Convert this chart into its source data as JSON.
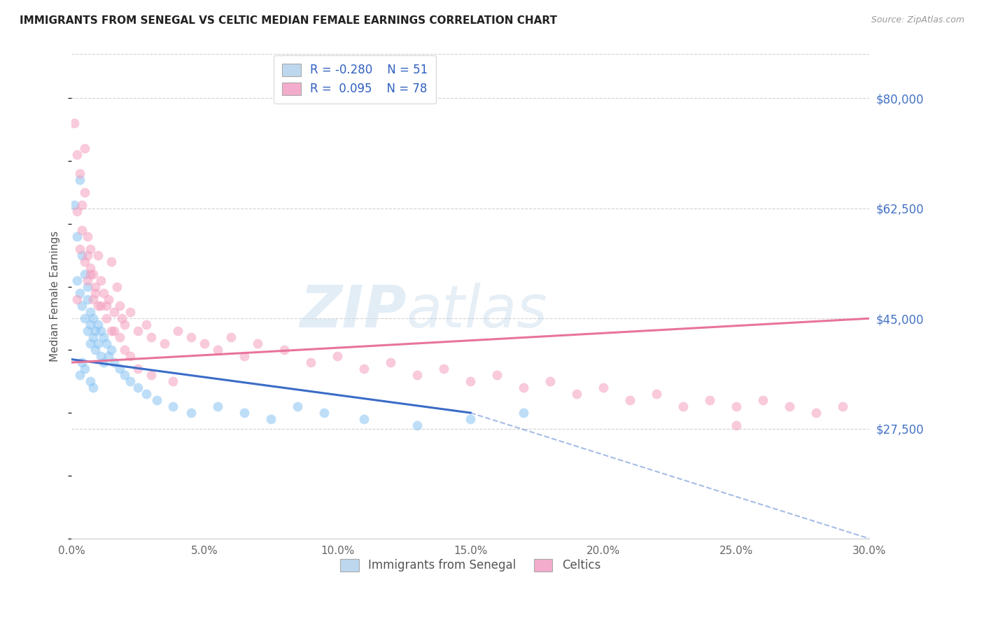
{
  "title": "IMMIGRANTS FROM SENEGAL VS CELTIC MEDIAN FEMALE EARNINGS CORRELATION CHART",
  "source": "Source: ZipAtlas.com",
  "ylabel": "Median Female Earnings",
  "xlim": [
    0.0,
    0.3
  ],
  "ylim": [
    10000,
    87000
  ],
  "xtick_labels": [
    "0.0%",
    "5.0%",
    "10.0%",
    "15.0%",
    "20.0%",
    "25.0%",
    "30.0%"
  ],
  "xtick_vals": [
    0.0,
    0.05,
    0.1,
    0.15,
    0.2,
    0.25,
    0.3
  ],
  "ytick_vals_right": [
    27500,
    45000,
    62500,
    80000
  ],
  "ytick_labels_right": [
    "$27,500",
    "$45,000",
    "$62,500",
    "$80,000"
  ],
  "r_senegal": -0.28,
  "n_senegal": 51,
  "r_celtics": 0.095,
  "n_celtics": 78,
  "color_senegal": "#89C4F4",
  "color_celtics": "#F4A0BE",
  "color_senegal_line": "#3B6CC7",
  "color_celtics_line": "#E8749A",
  "bg_color": "#FFFFFF",
  "grid_color": "#CCCCCC",
  "title_color": "#222222",
  "right_label_color": "#4472C4",
  "watermark_zip": "ZIP",
  "watermark_atlas": "atlas",
  "legend_fill_senegal": "#BDD7EE",
  "legend_fill_celtics": "#F4ACCC",
  "scatter_alpha": 0.55,
  "scatter_size": 100,
  "senegal_x": [
    0.001,
    0.002,
    0.002,
    0.003,
    0.003,
    0.004,
    0.004,
    0.005,
    0.005,
    0.006,
    0.006,
    0.006,
    0.007,
    0.007,
    0.007,
    0.008,
    0.008,
    0.009,
    0.009,
    0.01,
    0.01,
    0.011,
    0.011,
    0.012,
    0.012,
    0.013,
    0.014,
    0.015,
    0.016,
    0.018,
    0.02,
    0.022,
    0.025,
    0.028,
    0.032,
    0.038,
    0.045,
    0.055,
    0.065,
    0.075,
    0.085,
    0.095,
    0.11,
    0.13,
    0.15,
    0.17,
    0.004,
    0.005,
    0.003,
    0.007,
    0.008
  ],
  "senegal_y": [
    63000,
    58000,
    51000,
    67000,
    49000,
    55000,
    47000,
    52000,
    45000,
    50000,
    48000,
    43000,
    46000,
    44000,
    41000,
    45000,
    42000,
    43000,
    40000,
    44000,
    41000,
    43000,
    39000,
    42000,
    38000,
    41000,
    39000,
    40000,
    38000,
    37000,
    36000,
    35000,
    34000,
    33000,
    32000,
    31000,
    30000,
    31000,
    30000,
    29000,
    31000,
    30000,
    29000,
    28000,
    29000,
    30000,
    38000,
    37000,
    36000,
    35000,
    34000
  ],
  "celtics_x": [
    0.001,
    0.002,
    0.003,
    0.003,
    0.004,
    0.005,
    0.005,
    0.006,
    0.006,
    0.007,
    0.007,
    0.008,
    0.008,
    0.009,
    0.01,
    0.01,
    0.011,
    0.012,
    0.013,
    0.014,
    0.015,
    0.016,
    0.017,
    0.018,
    0.019,
    0.02,
    0.022,
    0.025,
    0.028,
    0.03,
    0.035,
    0.04,
    0.045,
    0.05,
    0.055,
    0.06,
    0.065,
    0.07,
    0.08,
    0.09,
    0.1,
    0.11,
    0.12,
    0.13,
    0.14,
    0.15,
    0.16,
    0.17,
    0.18,
    0.19,
    0.2,
    0.21,
    0.22,
    0.23,
    0.24,
    0.25,
    0.26,
    0.27,
    0.28,
    0.29,
    0.004,
    0.006,
    0.007,
    0.009,
    0.011,
    0.013,
    0.015,
    0.018,
    0.02,
    0.025,
    0.03,
    0.038,
    0.005,
    0.002,
    0.016,
    0.022,
    0.002,
    0.25
  ],
  "celtics_y": [
    76000,
    71000,
    68000,
    56000,
    63000,
    72000,
    54000,
    58000,
    51000,
    56000,
    53000,
    52000,
    48000,
    50000,
    55000,
    47000,
    51000,
    49000,
    47000,
    48000,
    54000,
    46000,
    50000,
    47000,
    45000,
    44000,
    46000,
    43000,
    44000,
    42000,
    41000,
    43000,
    42000,
    41000,
    40000,
    42000,
    39000,
    41000,
    40000,
    38000,
    39000,
    37000,
    38000,
    36000,
    37000,
    35000,
    36000,
    34000,
    35000,
    33000,
    34000,
    32000,
    33000,
    31000,
    32000,
    31000,
    32000,
    31000,
    30000,
    31000,
    59000,
    55000,
    52000,
    49000,
    47000,
    45000,
    43000,
    42000,
    40000,
    37000,
    36000,
    35000,
    65000,
    62000,
    43000,
    39000,
    48000,
    28000
  ]
}
